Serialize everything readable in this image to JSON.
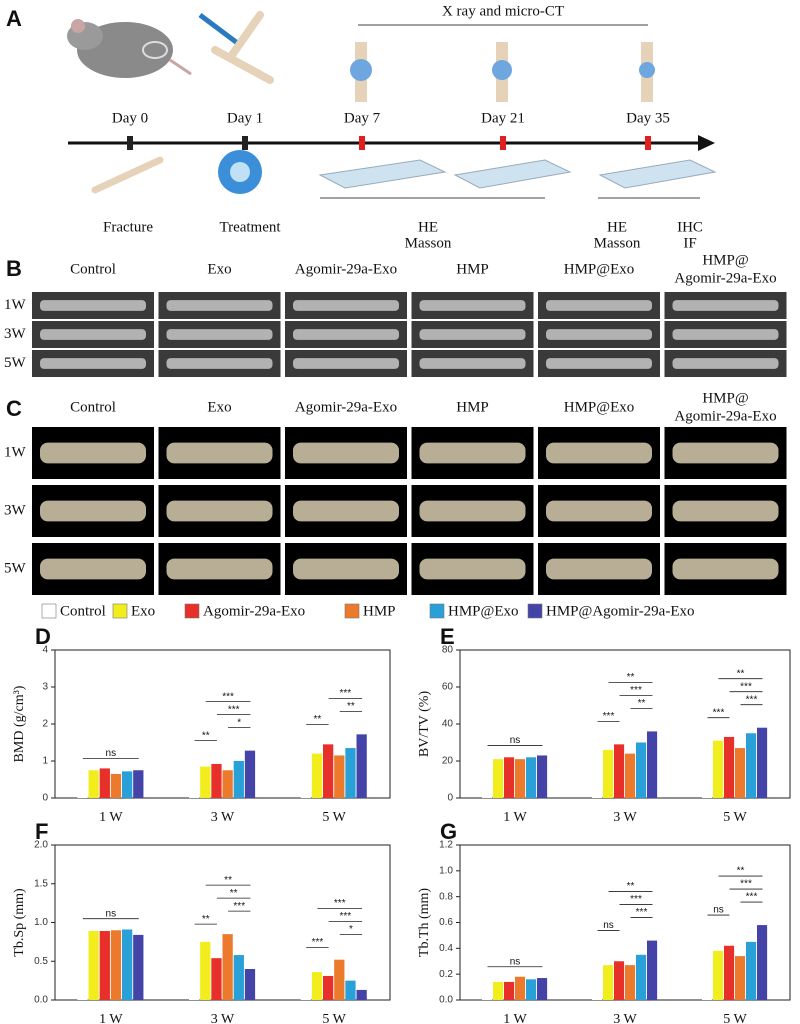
{
  "panel_a": {
    "label": "A",
    "imaging": "X ray and micro-CT",
    "days": [
      "Day 0",
      "Day 1",
      "Day 7",
      "Day 21",
      "Day 35"
    ],
    "steps": [
      "Fracture",
      "Treatment"
    ],
    "analyses": [
      [
        "HE",
        "Masson"
      ],
      [
        "HE",
        "Masson"
      ],
      [
        "IHC",
        "IF"
      ]
    ]
  },
  "panel_b": {
    "label": "B",
    "groups": [
      [
        "Control"
      ],
      [
        "Exo"
      ],
      [
        "Agomir-29a-Exo"
      ],
      [
        "HMP"
      ],
      [
        "HMP@Exo"
      ],
      [
        "HMP@",
        "Agomir-29a-Exo"
      ]
    ],
    "rows": [
      "1W",
      "3W",
      "5W"
    ]
  },
  "panel_c": {
    "label": "C",
    "groups": [
      [
        "Control"
      ],
      [
        "Exo"
      ],
      [
        "Agomir-29a-Exo"
      ],
      [
        "HMP"
      ],
      [
        "HMP@Exo"
      ],
      [
        "HMP@",
        "Agomir-29a-Exo"
      ]
    ],
    "rows": [
      "1W",
      "3W",
      "5W"
    ]
  },
  "chart_data": [
    {
      "type": "bar",
      "panel": "D",
      "ylabel": "BMD (g/cm³)",
      "categories": [
        "1 W",
        "3 W",
        "5 W"
      ],
      "ylim": [
        0,
        4
      ],
      "yticks": [
        0,
        1,
        2,
        3,
        4
      ],
      "series": [
        {
          "name": "Control",
          "color": "#ffffff",
          "values": [
            0.68,
            0.72,
            1.2
          ]
        },
        {
          "name": "Exo",
          "color": "#f2ee1e",
          "values": [
            0.75,
            0.85,
            1.2
          ]
        },
        {
          "name": "Agomir-29a-Exo",
          "color": "#e8302a",
          "values": [
            0.8,
            0.92,
            1.45
          ]
        },
        {
          "name": "HMP",
          "color": "#eb7a2c",
          "values": [
            0.65,
            0.75,
            1.15
          ]
        },
        {
          "name": "HMP@Exo",
          "color": "#2aa0d8",
          "values": [
            0.72,
            1.0,
            1.35
          ]
        },
        {
          "name": "HMP@Agomir-29a-Exo",
          "color": "#4343a8",
          "values": [
            0.75,
            1.28,
            1.72
          ]
        }
      ],
      "annotations": [
        [
          "ns"
        ],
        [
          "**",
          "*",
          "***",
          "***"
        ],
        [
          "**",
          "**",
          "***"
        ]
      ]
    },
    {
      "type": "bar",
      "panel": "E",
      "ylabel": "BV/TV (%)",
      "categories": [
        "1 W",
        "3 W",
        "5 W"
      ],
      "ylim": [
        0,
        80
      ],
      "yticks": [
        0,
        20,
        40,
        60,
        80
      ],
      "series": [
        {
          "name": "Control",
          "color": "#ffffff",
          "values": [
            21,
            23,
            22
          ]
        },
        {
          "name": "Exo",
          "color": "#f2ee1e",
          "values": [
            21,
            26,
            31
          ]
        },
        {
          "name": "Agomir-29a-Exo",
          "color": "#e8302a",
          "values": [
            22,
            29,
            33
          ]
        },
        {
          "name": "HMP",
          "color": "#eb7a2c",
          "values": [
            21,
            24,
            27
          ]
        },
        {
          "name": "HMP@Exo",
          "color": "#2aa0d8",
          "values": [
            22,
            30,
            35
          ]
        },
        {
          "name": "HMP@Agomir-29a-Exo",
          "color": "#4343a8",
          "values": [
            23,
            36,
            38
          ]
        }
      ],
      "annotations": [
        [
          "ns"
        ],
        [
          "***",
          "**",
          "***",
          "**"
        ],
        [
          "***",
          "***",
          "***",
          "**"
        ]
      ]
    },
    {
      "type": "bar",
      "panel": "F",
      "ylabel": "Tb.Sp (mm)",
      "categories": [
        "1 W",
        "3 W",
        "5 W"
      ],
      "ylim": [
        0,
        2
      ],
      "yticks": [
        {
          "value": 0,
          "label": "0.0"
        },
        0.5,
        {
          "value": 1,
          "label": "1.0"
        },
        1.5,
        {
          "value": 2,
          "label": "2.0"
        }
      ],
      "series": [
        {
          "name": "Control",
          "color": "#ffffff",
          "values": [
            0.92,
            0.85,
            0.55
          ]
        },
        {
          "name": "Exo",
          "color": "#f2ee1e",
          "values": [
            0.89,
            0.75,
            0.36
          ]
        },
        {
          "name": "Agomir-29a-Exo",
          "color": "#e8302a",
          "values": [
            0.89,
            0.54,
            0.31
          ]
        },
        {
          "name": "HMP",
          "color": "#eb7a2c",
          "values": [
            0.9,
            0.85,
            0.52
          ]
        },
        {
          "name": "HMP@Exo",
          "color": "#2aa0d8",
          "values": [
            0.91,
            0.58,
            0.25
          ]
        },
        {
          "name": "HMP@Agomir-29a-Exo",
          "color": "#4343a8",
          "values": [
            0.84,
            0.4,
            0.13
          ]
        }
      ],
      "annotations": [
        [
          "ns"
        ],
        [
          "**",
          "***",
          "**",
          "**"
        ],
        [
          "***",
          "*",
          "***",
          "***"
        ]
      ]
    },
    {
      "type": "bar",
      "panel": "G",
      "ylabel": "Tb.Th (mm)",
      "categories": [
        "1 W",
        "3 W",
        "5 W"
      ],
      "ylim": [
        0,
        1.2
      ],
      "yticks": [
        {
          "value": 0,
          "label": "0.0"
        },
        0.2,
        0.4,
        0.6,
        0.8,
        {
          "value": 1,
          "label": "1.0"
        },
        1.2
      ],
      "series": [
        {
          "name": "Control",
          "color": "#ffffff",
          "values": [
            0.12,
            0.26,
            0.36
          ]
        },
        {
          "name": "Exo",
          "color": "#f2ee1e",
          "values": [
            0.14,
            0.27,
            0.38
          ]
        },
        {
          "name": "Agomir-29a-Exo",
          "color": "#e8302a",
          "values": [
            0.14,
            0.3,
            0.42
          ]
        },
        {
          "name": "HMP",
          "color": "#eb7a2c",
          "values": [
            0.18,
            0.27,
            0.34
          ]
        },
        {
          "name": "HMP@Exo",
          "color": "#2aa0d8",
          "values": [
            0.16,
            0.35,
            0.45
          ]
        },
        {
          "name": "HMP@Agomir-29a-Exo",
          "color": "#4343a8",
          "values": [
            0.17,
            0.46,
            0.58
          ]
        }
      ],
      "annotations": [
        [
          "ns"
        ],
        [
          "ns",
          "***",
          "***",
          "**"
        ],
        [
          "ns",
          "***",
          "***",
          "**"
        ]
      ]
    }
  ]
}
